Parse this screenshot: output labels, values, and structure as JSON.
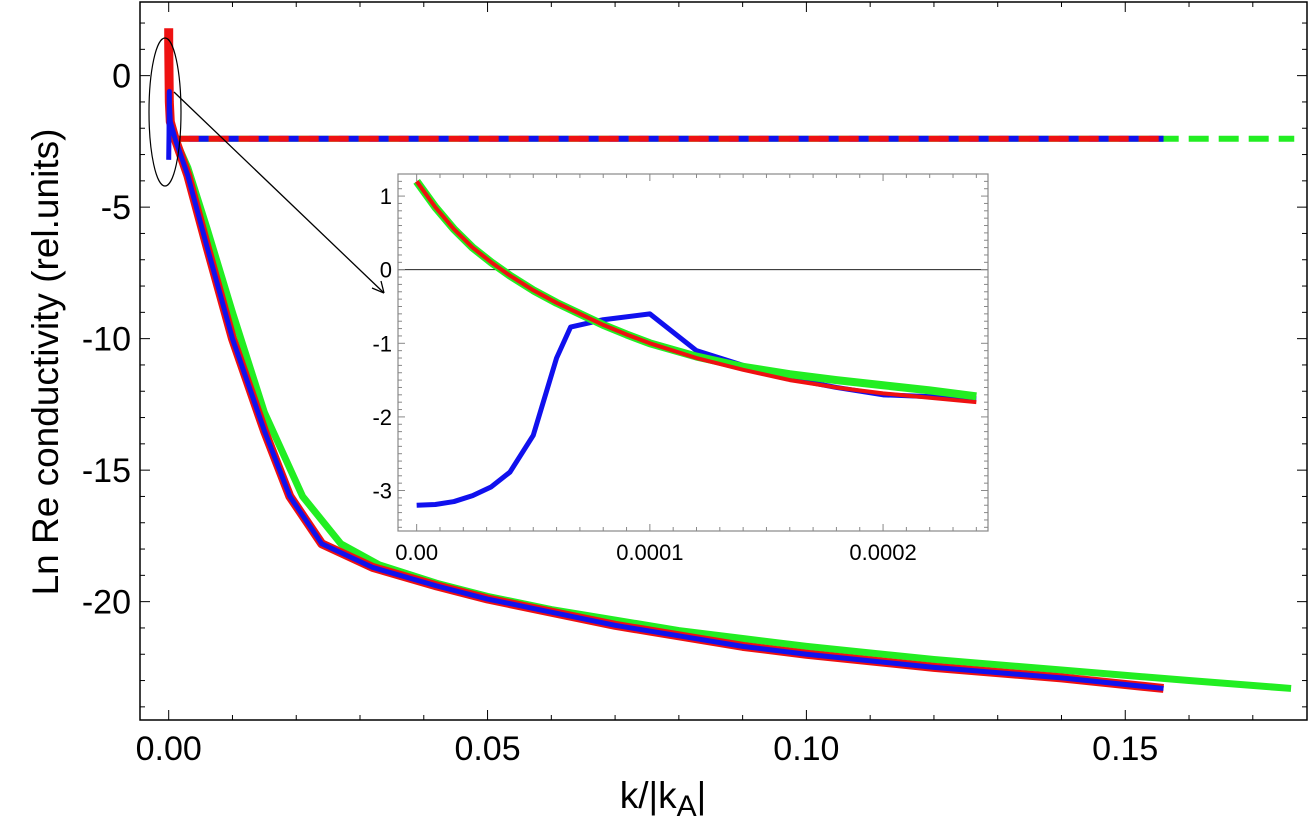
{
  "chart_data": [
    {
      "type": "line",
      "role": "main",
      "xlabel": "k/|k",
      "xlabel_sub": "A",
      "xlabel_end": "|",
      "ylabel": "Ln  Re conductivity (rel.units)",
      "xlim": [
        -0.0045,
        0.1785
      ],
      "ylim": [
        -24.5,
        2.8
      ],
      "xticks": [
        0.0,
        0.05,
        0.1,
        0.15
      ],
      "xtick_labels": [
        "0.00",
        "0.05",
        "0.10",
        "0.15"
      ],
      "yticks": [
        0,
        -5,
        -10,
        -15,
        -20
      ],
      "ytick_labels": [
        "0",
        "-5",
        "-10",
        "-15",
        "-20"
      ],
      "series": [
        {
          "name": "green-solid",
          "color": "#22ee22",
          "dash": false,
          "points": [
            [
              0.0,
              1.2
            ],
            [
              0.0001,
              -1.0
            ],
            [
              0.00025,
              -1.75
            ],
            [
              0.001,
              -2.4
            ],
            [
              0.003,
              -3.5
            ],
            [
              0.006,
              -5.8
            ],
            [
              0.01,
              -9.0
            ],
            [
              0.015,
              -12.8
            ],
            [
              0.021,
              -16.0
            ],
            [
              0.027,
              -17.8
            ],
            [
              0.033,
              -18.6
            ],
            [
              0.042,
              -19.3
            ],
            [
              0.05,
              -19.8
            ],
            [
              0.06,
              -20.3
            ],
            [
              0.07,
              -20.7
            ],
            [
              0.08,
              -21.1
            ],
            [
              0.09,
              -21.4
            ],
            [
              0.1,
              -21.7
            ],
            [
              0.12,
              -22.2
            ],
            [
              0.14,
              -22.6
            ],
            [
              0.16,
              -23.0
            ],
            [
              0.176,
              -23.3
            ]
          ]
        },
        {
          "name": "blue-solid",
          "color": "#1010ee",
          "dash": false,
          "points": [
            [
              0.0,
              -3.2
            ],
            [
              5e-05,
              -2.2
            ],
            [
              8e-05,
              -0.7
            ],
            [
              0.0001,
              -0.6
            ],
            [
              0.00012,
              -1.1
            ],
            [
              0.00025,
              -1.75
            ],
            [
              0.001,
              -2.4
            ],
            [
              0.003,
              -3.8
            ],
            [
              0.006,
              -6.5
            ],
            [
              0.01,
              -10.0
            ],
            [
              0.015,
              -13.5
            ],
            [
              0.019,
              -16.0
            ],
            [
              0.024,
              -17.8
            ],
            [
              0.032,
              -18.7
            ],
            [
              0.042,
              -19.4
            ],
            [
              0.05,
              -19.9
            ],
            [
              0.06,
              -20.4
            ],
            [
              0.07,
              -20.9
            ],
            [
              0.08,
              -21.3
            ],
            [
              0.09,
              -21.7
            ],
            [
              0.1,
              -22.0
            ],
            [
              0.12,
              -22.5
            ],
            [
              0.14,
              -22.9
            ],
            [
              0.156,
              -23.3
            ]
          ]
        },
        {
          "name": "red-solid",
          "color": "#ee1111",
          "dash": false,
          "points": [
            [
              0.0,
              1.8
            ],
            [
              0.0,
              1.2
            ],
            [
              0.0001,
              -1.0
            ],
            [
              0.00025,
              -1.75
            ],
            [
              0.001,
              -2.4
            ],
            [
              0.003,
              -3.8
            ],
            [
              0.006,
              -6.5
            ],
            [
              0.01,
              -10.0
            ],
            [
              0.015,
              -13.5
            ],
            [
              0.019,
              -16.0
            ],
            [
              0.024,
              -17.8
            ],
            [
              0.032,
              -18.7
            ],
            [
              0.042,
              -19.4
            ],
            [
              0.05,
              -19.9
            ],
            [
              0.06,
              -20.4
            ],
            [
              0.07,
              -20.9
            ],
            [
              0.08,
              -21.3
            ],
            [
              0.09,
              -21.7
            ],
            [
              0.1,
              -22.0
            ],
            [
              0.12,
              -22.5
            ],
            [
              0.14,
              -22.9
            ],
            [
              0.156,
              -23.3
            ]
          ]
        },
        {
          "name": "green-dashed",
          "color": "#22ee22",
          "dash": true,
          "points": [
            [
              0.0,
              -2.4
            ],
            [
              0.1765,
              -2.4
            ]
          ]
        },
        {
          "name": "blue-dashed",
          "color": "#1010ee",
          "dash": true,
          "points": [
            [
              0.0,
              -2.4
            ],
            [
              0.156,
              -2.4
            ]
          ]
        },
        {
          "name": "red-dashed",
          "color": "#ee1111",
          "dash": true,
          "points": [
            [
              0.0,
              -2.4
            ],
            [
              0.156,
              -2.4
            ]
          ]
        }
      ],
      "annotations": [
        "ellipse around k ≈ 0 region with arrow pointing to inset"
      ]
    },
    {
      "type": "line",
      "role": "inset",
      "xlim": [
        -8e-06,
        0.000245
      ],
      "ylim": [
        -3.55,
        1.3
      ],
      "xticks": [
        0.0,
        0.0001,
        0.0002
      ],
      "xtick_labels": [
        "0.00",
        "0.0001",
        "0.0002"
      ],
      "yticks": [
        1,
        0,
        -1,
        -2,
        -3
      ],
      "ytick_labels": [
        "1",
        "0",
        "-1",
        "-2",
        "-3"
      ],
      "zero_line": true,
      "series": [
        {
          "name": "blue",
          "color": "#1010ee",
          "points": [
            [
              0.0,
              -3.2
            ],
            [
              8e-06,
              -3.19
            ],
            [
              1.6e-05,
              -3.15
            ],
            [
              2.4e-05,
              -3.07
            ],
            [
              3.2e-05,
              -2.95
            ],
            [
              4e-05,
              -2.75
            ],
            [
              5e-05,
              -2.25
            ],
            [
              6e-05,
              -1.2
            ],
            [
              6.6e-05,
              -0.78
            ],
            [
              8e-05,
              -0.68
            ],
            [
              0.0001,
              -0.6
            ],
            [
              0.00012,
              -1.1
            ],
            [
              0.00014,
              -1.3
            ],
            [
              0.00016,
              -1.48
            ],
            [
              0.00018,
              -1.6
            ],
            [
              0.0002,
              -1.7
            ],
            [
              0.00024,
              -1.75
            ]
          ]
        },
        {
          "name": "green",
          "color": "#22ee22",
          "points": [
            [
              0.0,
              1.2
            ],
            [
              8e-06,
              0.85
            ],
            [
              1.6e-05,
              0.55
            ],
            [
              2.4e-05,
              0.3
            ],
            [
              3.2e-05,
              0.1
            ],
            [
              4e-05,
              -0.08
            ],
            [
              5e-05,
              -0.28
            ],
            [
              6e-05,
              -0.45
            ],
            [
              7e-05,
              -0.6
            ],
            [
              8e-05,
              -0.75
            ],
            [
              9e-05,
              -0.88
            ],
            [
              0.0001,
              -1.0
            ],
            [
              0.00012,
              -1.18
            ],
            [
              0.00014,
              -1.32
            ],
            [
              0.00016,
              -1.42
            ],
            [
              0.00018,
              -1.5
            ],
            [
              0.0002,
              -1.57
            ],
            [
              0.00022,
              -1.64
            ],
            [
              0.00024,
              -1.72
            ]
          ]
        },
        {
          "name": "red",
          "color": "#ee1111",
          "points": [
            [
              0.0,
              1.2
            ],
            [
              8e-06,
              0.85
            ],
            [
              1.6e-05,
              0.55
            ],
            [
              2.4e-05,
              0.3
            ],
            [
              3.2e-05,
              0.1
            ],
            [
              4e-05,
              -0.08
            ],
            [
              5e-05,
              -0.28
            ],
            [
              6e-05,
              -0.45
            ],
            [
              7e-05,
              -0.6
            ],
            [
              8e-05,
              -0.75
            ],
            [
              9e-05,
              -0.88
            ],
            [
              0.0001,
              -1.0
            ],
            [
              0.00012,
              -1.2
            ],
            [
              0.00014,
              -1.36
            ],
            [
              0.00016,
              -1.5
            ],
            [
              0.00018,
              -1.6
            ],
            [
              0.0002,
              -1.68
            ],
            [
              0.00022,
              -1.74
            ],
            [
              0.00024,
              -1.8
            ]
          ]
        }
      ]
    }
  ]
}
